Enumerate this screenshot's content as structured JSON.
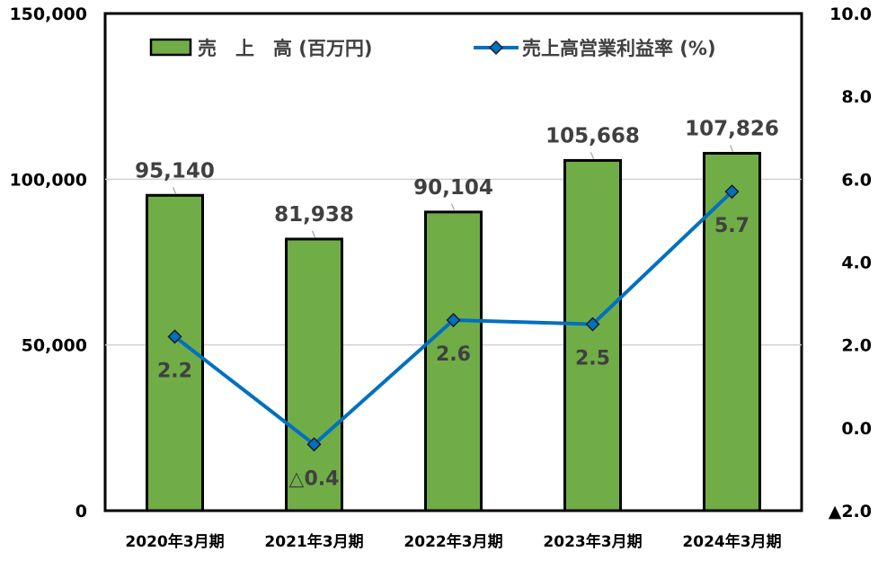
{
  "chart_data": {
    "type": "bar+line",
    "categories": [
      "2020年3月期",
      "2021年3月期",
      "2022年3月期",
      "2023年3月期",
      "2024年3月期"
    ],
    "series": [
      {
        "name": "売　上　高 (百万円)",
        "type": "bar",
        "axis": "left",
        "values": [
          95140,
          81938,
          90104,
          105668,
          107826
        ],
        "labels": [
          "95,140",
          "81,938",
          "90,104",
          "105,668",
          "107,826"
        ],
        "color": "#70AD47"
      },
      {
        "name": "売上高営業利益率 (%)",
        "type": "line",
        "axis": "right",
        "values": [
          2.2,
          -0.4,
          2.6,
          2.5,
          5.7
        ],
        "labels": [
          "2.2",
          "△0.4",
          "2.6",
          "2.5",
          "5.7"
        ],
        "color": "#0070C0"
      }
    ],
    "y_left": {
      "min": 0,
      "max": 150000,
      "ticks": [
        0,
        50000,
        100000,
        150000
      ],
      "tick_labels": [
        "0",
        "50,000",
        "100,000",
        "150,000"
      ]
    },
    "y_right": {
      "min": -2.0,
      "max": 10.0,
      "ticks": [
        -2.0,
        0.0,
        2.0,
        4.0,
        6.0,
        8.0,
        10.0
      ],
      "tick_labels": [
        "▲2.0",
        "0.0",
        "2.0",
        "4.0",
        "6.0",
        "8.0",
        "10.0"
      ]
    },
    "grid": true,
    "legend_position": "top"
  }
}
